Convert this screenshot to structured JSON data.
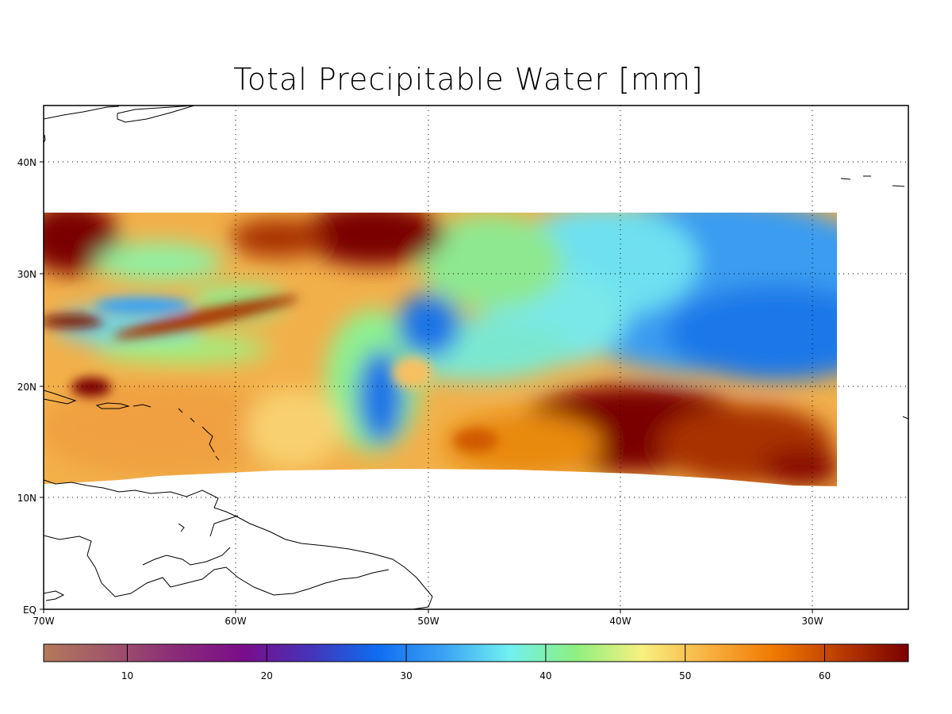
{
  "title": "Total Precipitable Water [mm]",
  "map": {
    "lon_range": [
      -70,
      -25
    ],
    "lat_range": [
      0,
      45
    ],
    "lon_ticks": [
      {
        "value": -70,
        "label": "70W"
      },
      {
        "value": -60,
        "label": "60W"
      },
      {
        "value": -50,
        "label": "50W"
      },
      {
        "value": -40,
        "label": "40W"
      },
      {
        "value": -30,
        "label": "30W"
      }
    ],
    "lat_ticks": [
      {
        "value": 0,
        "label": "EQ"
      },
      {
        "value": 10,
        "label": "10N"
      },
      {
        "value": 20,
        "label": "20N"
      },
      {
        "value": 30,
        "label": "30N"
      },
      {
        "value": 40,
        "label": "40N"
      }
    ],
    "grid": "dotted"
  },
  "colorbar": {
    "range": [
      4,
      66
    ],
    "ticks": [
      {
        "value": 10,
        "label": "10"
      },
      {
        "value": 20,
        "label": "20"
      },
      {
        "value": 30,
        "label": "30"
      },
      {
        "value": 40,
        "label": "40"
      },
      {
        "value": 50,
        "label": "50"
      },
      {
        "value": 60,
        "label": "60"
      }
    ],
    "colors": [
      "#b27a5a",
      "#a0556b",
      "#8a2b78",
      "#7a0d8a",
      "#4633b8",
      "#0f6cf0",
      "#3aa2f5",
      "#70f0f0",
      "#8ef080",
      "#f8f080",
      "#f8b040",
      "#f07800",
      "#b83a00",
      "#7a0000"
    ]
  }
}
